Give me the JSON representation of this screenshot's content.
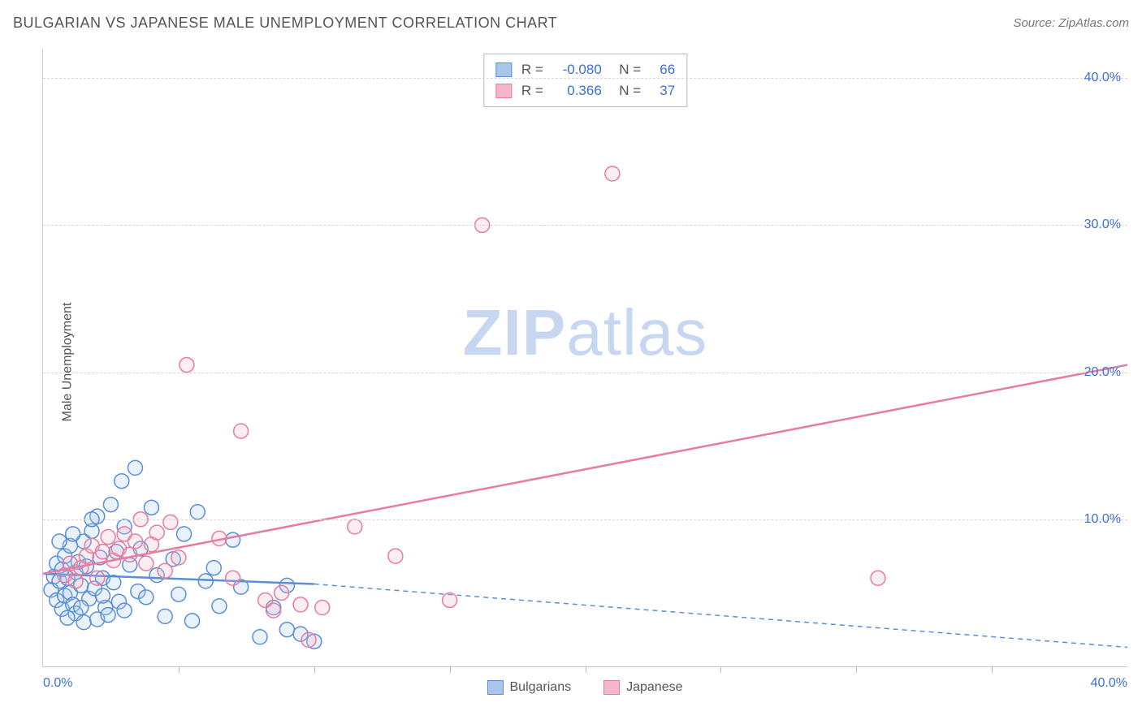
{
  "header": {
    "title": "BULGARIAN VS JAPANESE MALE UNEMPLOYMENT CORRELATION CHART",
    "source": "Source: ZipAtlas.com"
  },
  "watermark": {
    "bold": "ZIP",
    "light": "atlas"
  },
  "chart": {
    "type": "scatter",
    "ylabel": "Male Unemployment",
    "background_color": "#ffffff",
    "grid_color": "#d8d8d8",
    "axis_color": "#cccccc",
    "tick_color": "#bbbbbb",
    "label_color": "#3b6fd6",
    "text_color": "#555555",
    "title_fontsize": 18,
    "label_fontsize": 16,
    "xlim": [
      0,
      40
    ],
    "ylim": [
      0,
      42
    ],
    "ytick_step": 10,
    "yticks": [
      10,
      20,
      30,
      40
    ],
    "ytick_labels": [
      "10.0%",
      "20.0%",
      "30.0%",
      "40.0%"
    ],
    "xticks_minor": [
      5,
      10,
      15,
      20,
      25,
      30,
      35
    ],
    "xtick_first_label": "0.0%",
    "xtick_last_label": "40.0%",
    "marker_radius": 9,
    "marker_stroke_width": 1.5,
    "marker_fill_opacity": 0.25,
    "trend_stroke_width": 2.5,
    "series": [
      {
        "name": "Bulgarians",
        "color_stroke": "#5a8fd6",
        "color_fill": "#a9c6ea",
        "trend": {
          "x1": 0,
          "y1": 6.3,
          "x2_solid": 10,
          "y2_solid": 5.6,
          "x2": 40,
          "y2": 1.3,
          "dash": "6,5"
        },
        "stats": {
          "R": "-0.080",
          "N": "66"
        },
        "points": [
          [
            0.3,
            5.2
          ],
          [
            0.4,
            6.1
          ],
          [
            0.5,
            4.5
          ],
          [
            0.5,
            7.0
          ],
          [
            0.6,
            5.8
          ],
          [
            0.7,
            3.9
          ],
          [
            0.7,
            6.6
          ],
          [
            0.8,
            4.8
          ],
          [
            0.8,
            7.5
          ],
          [
            0.9,
            6.0
          ],
          [
            1.0,
            5.0
          ],
          [
            1.0,
            8.2
          ],
          [
            1.1,
            4.2
          ],
          [
            1.2,
            6.4
          ],
          [
            1.2,
            3.6
          ],
          [
            1.3,
            7.1
          ],
          [
            1.4,
            5.5
          ],
          [
            1.5,
            8.5
          ],
          [
            1.5,
            3.0
          ],
          [
            1.6,
            6.8
          ],
          [
            1.7,
            4.6
          ],
          [
            1.8,
            9.2
          ],
          [
            1.9,
            5.3
          ],
          [
            2.0,
            10.2
          ],
          [
            2.0,
            3.2
          ],
          [
            2.1,
            7.4
          ],
          [
            2.2,
            6.0
          ],
          [
            2.3,
            4.0
          ],
          [
            2.4,
            3.5
          ],
          [
            2.5,
            11.0
          ],
          [
            2.6,
            5.7
          ],
          [
            2.7,
            7.8
          ],
          [
            2.8,
            4.4
          ],
          [
            2.9,
            12.6
          ],
          [
            3.0,
            9.5
          ],
          [
            3.0,
            3.8
          ],
          [
            3.2,
            6.9
          ],
          [
            3.4,
            13.5
          ],
          [
            3.5,
            5.1
          ],
          [
            3.6,
            8.0
          ],
          [
            3.8,
            4.7
          ],
          [
            4.0,
            10.8
          ],
          [
            4.2,
            6.2
          ],
          [
            4.5,
            3.4
          ],
          [
            4.8,
            7.3
          ],
          [
            5.0,
            4.9
          ],
          [
            5.2,
            9.0
          ],
          [
            5.5,
            3.1
          ],
          [
            5.7,
            10.5
          ],
          [
            6.0,
            5.8
          ],
          [
            6.3,
            6.7
          ],
          [
            6.5,
            4.1
          ],
          [
            7.0,
            8.6
          ],
          [
            7.3,
            5.4
          ],
          [
            8.0,
            2.0
          ],
          [
            8.5,
            4.0
          ],
          [
            9.0,
            5.5
          ],
          [
            9.0,
            2.5
          ],
          [
            9.5,
            2.2
          ],
          [
            10.0,
            1.7
          ],
          [
            1.8,
            10.0
          ],
          [
            2.2,
            4.8
          ],
          [
            1.4,
            4.0
          ],
          [
            0.9,
            3.3
          ],
          [
            1.1,
            9.0
          ],
          [
            0.6,
            8.5
          ]
        ]
      },
      {
        "name": "Japanese",
        "color_stroke": "#e77ba0",
        "color_fill": "#f4b6c9",
        "trend": {
          "x1": 0,
          "y1": 6.3,
          "x2_solid": 40,
          "y2_solid": 20.5,
          "x2": 40,
          "y2": 20.5
        },
        "stats": {
          "R": "0.366",
          "N": "37"
        },
        "points": [
          [
            0.8,
            6.2
          ],
          [
            1.0,
            7.0
          ],
          [
            1.2,
            5.8
          ],
          [
            1.4,
            6.7
          ],
          [
            1.6,
            7.5
          ],
          [
            1.8,
            8.2
          ],
          [
            2.0,
            6.0
          ],
          [
            2.2,
            7.8
          ],
          [
            2.4,
            8.8
          ],
          [
            2.6,
            7.2
          ],
          [
            2.8,
            8.0
          ],
          [
            3.0,
            9.0
          ],
          [
            3.2,
            7.6
          ],
          [
            3.4,
            8.5
          ],
          [
            3.6,
            10.0
          ],
          [
            3.8,
            7.0
          ],
          [
            4.0,
            8.3
          ],
          [
            4.2,
            9.1
          ],
          [
            4.5,
            6.5
          ],
          [
            4.7,
            9.8
          ],
          [
            5.0,
            7.4
          ],
          [
            5.3,
            20.5
          ],
          [
            6.5,
            8.7
          ],
          [
            7.0,
            6.0
          ],
          [
            7.3,
            16.0
          ],
          [
            8.2,
            4.5
          ],
          [
            8.5,
            3.8
          ],
          [
            8.8,
            5.0
          ],
          [
            9.5,
            4.2
          ],
          [
            10.3,
            4.0
          ],
          [
            11.5,
            9.5
          ],
          [
            13.0,
            7.5
          ],
          [
            15.0,
            4.5
          ],
          [
            16.2,
            30.0
          ],
          [
            21.0,
            33.5
          ],
          [
            30.8,
            6.0
          ],
          [
            9.8,
            1.8
          ]
        ]
      }
    ],
    "legend_bottom": [
      {
        "label": "Bulgarians",
        "swatch_fill": "#a9c6ea",
        "swatch_border": "#5a8fd6"
      },
      {
        "label": "Japanese",
        "swatch_fill": "#f4b6c9",
        "swatch_border": "#e77ba0"
      }
    ]
  }
}
